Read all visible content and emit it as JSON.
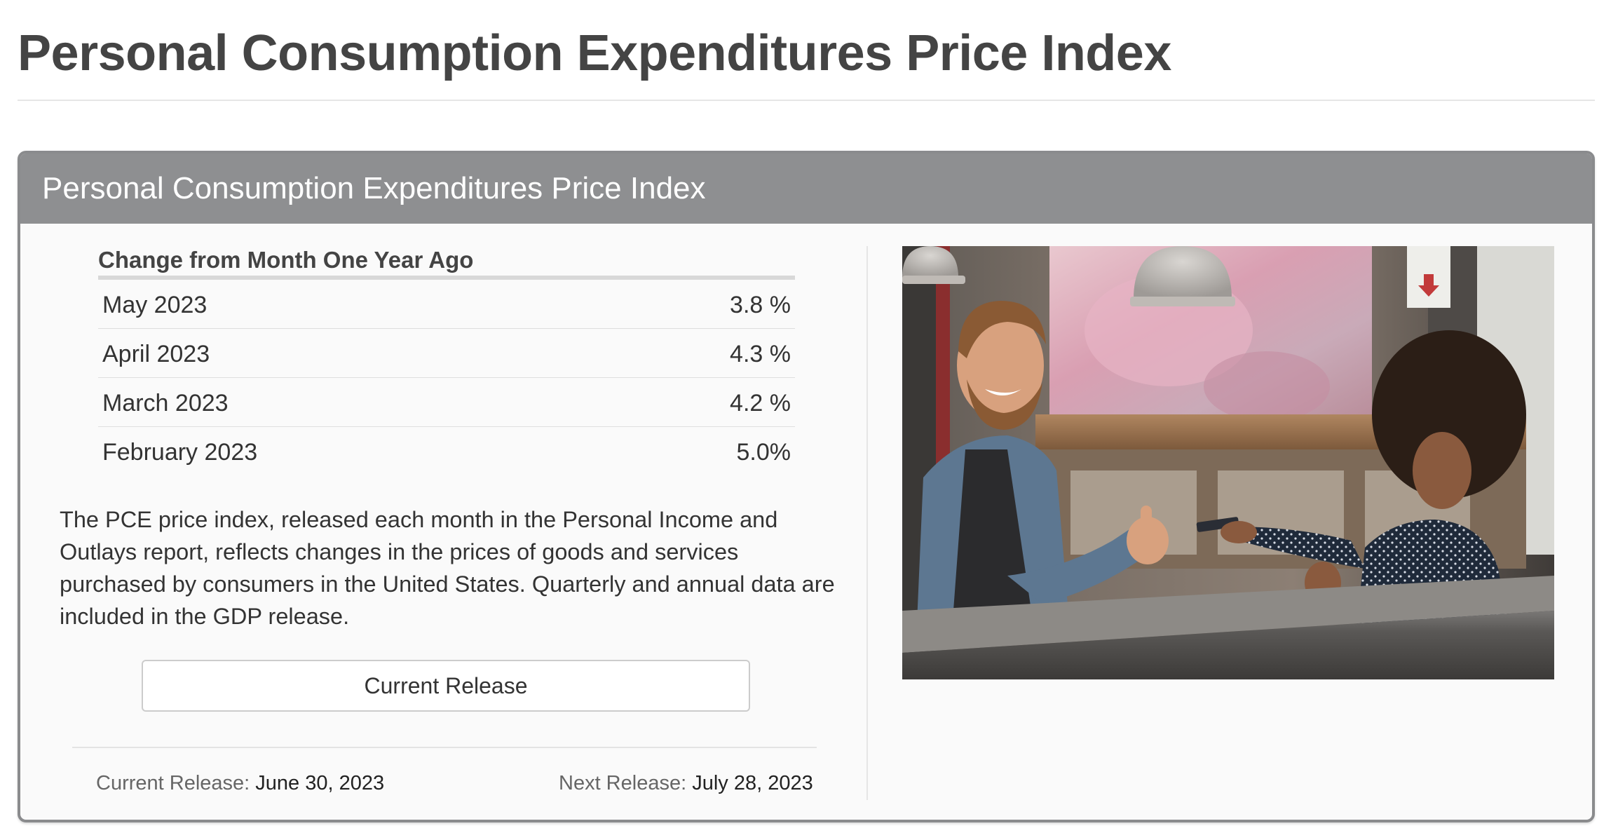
{
  "page": {
    "title": "Personal Consumption Expenditures Price Index"
  },
  "panel": {
    "header_title": "Personal Consumption Expenditures Price Index",
    "table": {
      "caption": "Change from Month One Year Ago",
      "rows": [
        {
          "month": "May 2023",
          "value": "3.8 %"
        },
        {
          "month": "April 2023",
          "value": "4.3 %"
        },
        {
          "month": "March 2023",
          "value": "4.2 %"
        },
        {
          "month": "February 2023",
          "value": "5.0%"
        }
      ]
    },
    "description": "The PCE price index, released each month in the Personal Income and Outlays report, reflects changes in the prices of goods and services purchased by consumers in the United States. Quarterly and annual data are included in the GDP release.",
    "button_label": "Current Release",
    "current_release": {
      "label": "Current Release:",
      "value": "June 30, 2023"
    },
    "next_release": {
      "label": "Next Release:",
      "value": "July 28, 2023"
    }
  },
  "colors": {
    "header_bg": "#8e8f91",
    "panel_border": "#8a8b8d",
    "title_text": "#444444"
  }
}
